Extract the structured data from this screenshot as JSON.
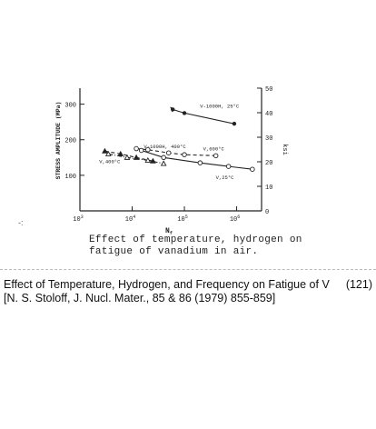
{
  "chart_data": {
    "type": "line",
    "title": "",
    "xlabel": "N_f",
    "ylabel_left": "STRESS AMPLITUDE (MPa)",
    "ylabel_right": "ksi",
    "x_scale": "log",
    "xlim": [
      1000,
      3000000
    ],
    "ylim_left": [
      0,
      345
    ],
    "ylim_right": [
      0,
      50
    ],
    "x_ticks": [
      {
        "value": 1000,
        "label": "10",
        "exp": "3"
      },
      {
        "value": 10000,
        "label": "10",
        "exp": "4"
      },
      {
        "value": 100000,
        "label": "10",
        "exp": "5"
      },
      {
        "value": 1000000,
        "label": "10",
        "exp": "6"
      }
    ],
    "y_ticks_left": [
      {
        "value": 100,
        "label": "100"
      },
      {
        "value": 200,
        "label": "200"
      },
      {
        "value": 300,
        "label": "300"
      }
    ],
    "y_ticks_right": [
      {
        "value": 0,
        "label": "0"
      },
      {
        "value": 10,
        "label": "10"
      },
      {
        "value": 20,
        "label": "20"
      },
      {
        "value": 30,
        "label": "30"
      },
      {
        "value": 40,
        "label": "40"
      },
      {
        "value": 50,
        "label": "50"
      }
    ],
    "grid": false,
    "series": [
      {
        "name": "V-1000H, 25°C",
        "marker": "filled-circle",
        "style": "solid",
        "x": [
          60000,
          100000,
          900000
        ],
        "y": [
          285,
          275,
          245
        ]
      },
      {
        "name": "V,600°C",
        "marker": "open-circle",
        "style": "dashed",
        "x": [
          12000,
          20000,
          50000,
          100000,
          400000
        ],
        "y": [
          175,
          172,
          163,
          158,
          155
        ]
      },
      {
        "name": "V,25°C",
        "marker": "open-circle",
        "style": "solid",
        "x": [
          15000,
          40000,
          200000,
          700000,
          2000000
        ],
        "y": [
          170,
          150,
          135,
          125,
          117
        ]
      },
      {
        "name": "V-1000H, 400°C",
        "marker": "filled-triangle",
        "style": "dashed",
        "x": [
          3000,
          6000,
          12000,
          25000
        ],
        "y": [
          168,
          160,
          150,
          140
        ]
      },
      {
        "name": "V,400°C",
        "marker": "open-triangle",
        "style": "dash-dot",
        "x": [
          3500,
          8000,
          20000,
          40000
        ],
        "y": [
          160,
          150,
          142,
          133
        ]
      }
    ],
    "annotations": [
      "V-1000H, 25°C",
      "V-1000H, 400°C",
      "V,600°C",
      "V,400°C",
      "V,25°C"
    ]
  },
  "caption": {
    "line1": "Effect of temperature, hydrogen on",
    "line2": "fatigue of vanadium in air."
  },
  "reference": {
    "title": "Effect of Temperature, Hydrogen, and Frequency on Fatigue of  V",
    "number": "(121)",
    "citation": "[N. S. Stoloff, J. Nucl. Mater., 85 & 86 (1979) 855-859]"
  },
  "stray_mark": "-:"
}
